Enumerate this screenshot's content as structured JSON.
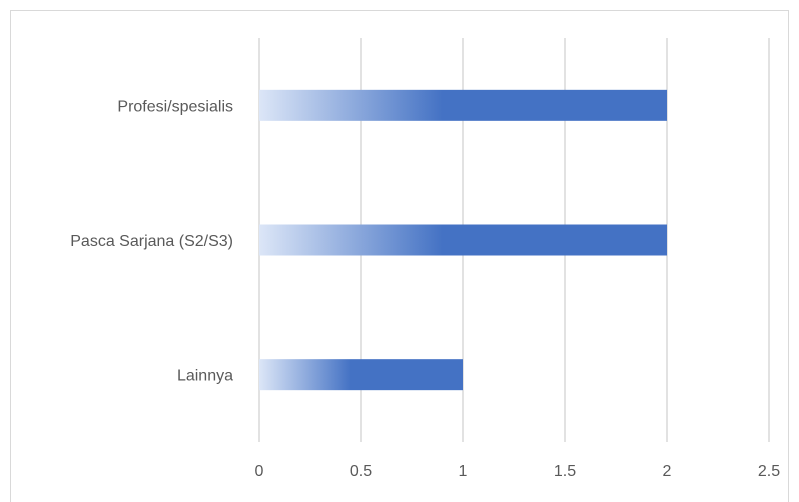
{
  "chart_data": {
    "type": "bar",
    "orientation": "horizontal",
    "categories": [
      "Profesi/spesialis",
      "Pasca Sarjana (S2/S3)",
      "Lainnya"
    ],
    "values": [
      2,
      2,
      1
    ],
    "xlim": [
      0,
      2.5
    ],
    "xticks": [
      "0",
      "0.5",
      "1",
      "1.5",
      "2",
      "2.5"
    ],
    "grid": "vertical",
    "title": "",
    "xlabel": "",
    "ylabel": "",
    "bar_color": "#4472C4",
    "bar_gradient_start": "#DCE6F7"
  }
}
